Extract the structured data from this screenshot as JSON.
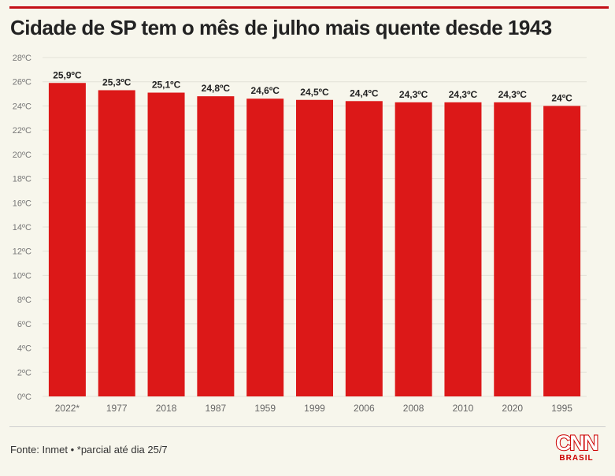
{
  "title": "Cidade de SP tem o mês de julho mais quente desde 1943",
  "source": "Fonte: Inmet • *parcial até dia 25/7",
  "logo": {
    "main": "CNN",
    "sub": "BRASIL"
  },
  "colors": {
    "bar": "#dc1818",
    "title_rule": "#c40f16",
    "background": "#f7f6ec",
    "grid": "#e3e2d8"
  },
  "chart_data": {
    "type": "bar",
    "title": "Cidade de SP tem o mês de julho mais quente desde 1943",
    "xlabel": "",
    "ylabel": "",
    "categories": [
      "2022*",
      "1977",
      "2018",
      "1987",
      "1959",
      "1999",
      "2006",
      "2008",
      "2010",
      "2020",
      "1995"
    ],
    "values": [
      25.9,
      25.3,
      25.1,
      24.8,
      24.6,
      24.5,
      24.4,
      24.3,
      24.3,
      24.3,
      24.0
    ],
    "data_labels": [
      "25,9ºC",
      "25,3ºC",
      "25,1ºC",
      "24,8ºC",
      "24,6ºC",
      "24,5ºC",
      "24,4ºC",
      "24,3ºC",
      "24,3ºC",
      "24,3ºC",
      "24ºC"
    ],
    "ylim": [
      0,
      28
    ],
    "yticks": [
      0,
      2,
      4,
      6,
      8,
      10,
      12,
      14,
      16,
      18,
      20,
      22,
      24,
      26,
      28
    ],
    "ytick_labels": [
      "0ºC",
      "2ºC",
      "4ºC",
      "6ºC",
      "8ºC",
      "10ºC",
      "12ºC",
      "14ºC",
      "16ºC",
      "18ºC",
      "20ºC",
      "22ºC",
      "24ºC",
      "26ºC",
      "28ºC"
    ],
    "grid": true,
    "legend": "none"
  }
}
